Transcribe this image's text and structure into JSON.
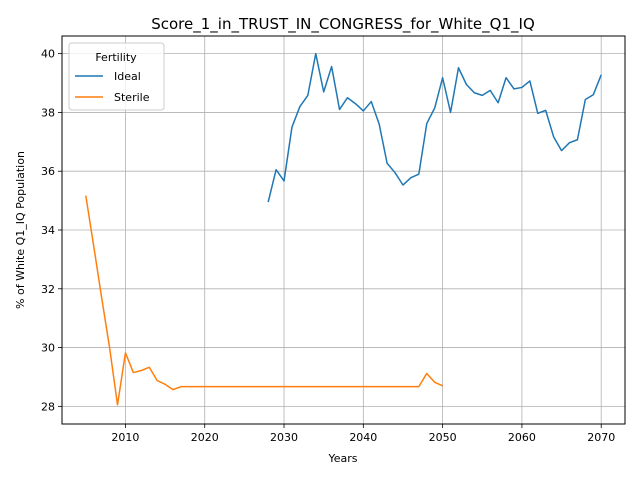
{
  "chart_data": {
    "type": "line",
    "title": "Score_1_in_TRUST_IN_CONGRESS_for_White_Q1_IQ",
    "xlabel": "Years",
    "ylabel": "% of White Q1_IQ Population",
    "xlim": [
      2002,
      2073
    ],
    "ylim": [
      27.4,
      40.6
    ],
    "xticks": [
      2010,
      2020,
      2030,
      2040,
      2050,
      2060,
      2070
    ],
    "yticks": [
      28,
      30,
      32,
      34,
      36,
      38,
      40
    ],
    "grid": true,
    "legend": {
      "title": "Fertility",
      "position": "top-left"
    },
    "series": [
      {
        "name": "Ideal",
        "color": "#1f77b4",
        "x": [
          2028,
          2029,
          2030,
          2031,
          2032,
          2033,
          2034,
          2035,
          2036,
          2037,
          2038,
          2039,
          2040,
          2041,
          2042,
          2043,
          2044,
          2045,
          2046,
          2047,
          2048,
          2049,
          2050,
          2051,
          2052,
          2053,
          2054,
          2055,
          2056,
          2057,
          2058,
          2059,
          2060,
          2061,
          2062,
          2063,
          2064,
          2065,
          2066,
          2067,
          2068,
          2069,
          2070
        ],
        "y": [
          34.95,
          36.05,
          35.67,
          37.5,
          38.2,
          38.58,
          40.0,
          38.7,
          39.56,
          38.1,
          38.5,
          38.3,
          38.05,
          38.37,
          37.6,
          36.27,
          35.95,
          35.53,
          35.78,
          35.9,
          37.62,
          38.15,
          39.18,
          38.0,
          39.52,
          38.95,
          38.67,
          38.58,
          38.75,
          38.33,
          39.18,
          38.8,
          38.85,
          39.07,
          37.97,
          38.07,
          37.17,
          36.7,
          36.97,
          37.07,
          38.44,
          38.6,
          39.28
        ]
      },
      {
        "name": "Sterile",
        "color": "#ff7f0e",
        "x": [
          2005,
          2006,
          2007,
          2008,
          2009,
          2010,
          2011,
          2012,
          2013,
          2014,
          2015,
          2016,
          2017,
          2018,
          2019,
          2020,
          2021,
          2022,
          2023,
          2024,
          2025,
          2026,
          2027,
          2028,
          2029,
          2030,
          2031,
          2032,
          2033,
          2034,
          2035,
          2036,
          2037,
          2038,
          2039,
          2040,
          2041,
          2042,
          2043,
          2044,
          2045,
          2046,
          2047,
          2048,
          2049,
          2050
        ],
        "y": [
          35.17,
          33.45,
          31.7,
          30.0,
          28.05,
          29.82,
          29.15,
          29.22,
          29.33,
          28.88,
          28.75,
          28.57,
          28.67,
          28.67,
          28.67,
          28.67,
          28.67,
          28.67,
          28.67,
          28.67,
          28.67,
          28.67,
          28.67,
          28.67,
          28.67,
          28.67,
          28.67,
          28.67,
          28.67,
          28.67,
          28.67,
          28.67,
          28.67,
          28.67,
          28.67,
          28.67,
          28.67,
          28.67,
          28.67,
          28.67,
          28.67,
          28.67,
          28.67,
          29.12,
          28.82,
          28.7
        ]
      }
    ]
  }
}
